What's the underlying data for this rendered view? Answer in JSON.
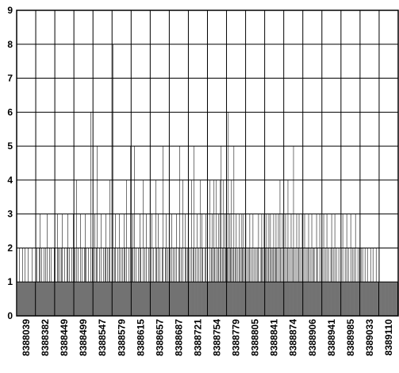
{
  "chart_data": {
    "type": "bar",
    "title": "",
    "xlabel": "",
    "ylabel": "",
    "ylim": [
      0,
      9
    ],
    "y_ticks": [
      "0",
      "1",
      "2",
      "3",
      "4",
      "5",
      "6",
      "7",
      "8",
      "9"
    ],
    "x_tick_labels": [
      "8388039",
      "8388382",
      "8388449",
      "8388499",
      "8388547",
      "8388579",
      "8388615",
      "8388657",
      "8388687",
      "8388721",
      "8388754",
      "8388779",
      "8388805",
      "8388841",
      "8388874",
      "8388906",
      "8388941",
      "8388985",
      "8389033",
      "8389110"
    ],
    "grid": true,
    "bar_color": "#000000",
    "categories_per_label": 24,
    "values": [
      1,
      1,
      1,
      2,
      1,
      1,
      1,
      2,
      1,
      1,
      2,
      1,
      1,
      1,
      2,
      1,
      1,
      1,
      1,
      2,
      1,
      1,
      1,
      1,
      1,
      2,
      1,
      1,
      2,
      3,
      1,
      2,
      1,
      1,
      2,
      1,
      2,
      1,
      3,
      1,
      1,
      2,
      1,
      2,
      1,
      1,
      1,
      2,
      2,
      1,
      1,
      3,
      2,
      1,
      2,
      1,
      2,
      3,
      1,
      1,
      2,
      1,
      1,
      2,
      3,
      1,
      2,
      1,
      1,
      2,
      1,
      3,
      1,
      2,
      1,
      4,
      1,
      2,
      1,
      1,
      3,
      1,
      2,
      1,
      1,
      2,
      3,
      2,
      1,
      1,
      2,
      1,
      1,
      6,
      1,
      2,
      2,
      1,
      3,
      1,
      2,
      5,
      1,
      1,
      2,
      1,
      3,
      1,
      1,
      2,
      1,
      2,
      3,
      1,
      2,
      1,
      2,
      4,
      1,
      1,
      1,
      8,
      1,
      2,
      3,
      1,
      1,
      2,
      1,
      3,
      1,
      2,
      1,
      2,
      1,
      3,
      2,
      1,
      4,
      1,
      1,
      2,
      1,
      5,
      1,
      2,
      3,
      1,
      5,
      1,
      2,
      1,
      1,
      2,
      1,
      3,
      2,
      1,
      1,
      4,
      1,
      2,
      1,
      3,
      1,
      1,
      2,
      1,
      2,
      1,
      3,
      1,
      2,
      1,
      1,
      4,
      2,
      1,
      3,
      1,
      2,
      1,
      1,
      2,
      5,
      1,
      1,
      2,
      3,
      1,
      2,
      1,
      1,
      2,
      1,
      3,
      1,
      2,
      1,
      2,
      1,
      3,
      1,
      1,
      2,
      5,
      1,
      2,
      1,
      4,
      1,
      1,
      3,
      2,
      1,
      2,
      4,
      1,
      2,
      1,
      4,
      1,
      2,
      5,
      1,
      2,
      1,
      3,
      1,
      2,
      1,
      4,
      1,
      3,
      2,
      1,
      1,
      2,
      3,
      1,
      2,
      1,
      1,
      4,
      1,
      2,
      3,
      1,
      4,
      2,
      1,
      4,
      1,
      2,
      3,
      1,
      4,
      5,
      1,
      2,
      4,
      1,
      3,
      2,
      1,
      2,
      6,
      1,
      3,
      2,
      4,
      1,
      2,
      5,
      1,
      2,
      3,
      1,
      2,
      1,
      3,
      2,
      1,
      3,
      2,
      3,
      1,
      2,
      3,
      1,
      2,
      1,
      2,
      3,
      1,
      2,
      1,
      3,
      1,
      2,
      1,
      2,
      1,
      2,
      3,
      1,
      1,
      2,
      3,
      2,
      1,
      3,
      1,
      2,
      3,
      1,
      2,
      3,
      1,
      3,
      2,
      1,
      2,
      3,
      1,
      2,
      3,
      2,
      1,
      3,
      1,
      4,
      2,
      1,
      3,
      1,
      2,
      1,
      3,
      1,
      2,
      4,
      1,
      2,
      1,
      3,
      1,
      2,
      5,
      1,
      2,
      1,
      3,
      1,
      2,
      3,
      1,
      2,
      1,
      3,
      2,
      1,
      3,
      1,
      2,
      1,
      2,
      3,
      1,
      2,
      1,
      3,
      1,
      2,
      2,
      1,
      1,
      3,
      2,
      1,
      1,
      3,
      1,
      2,
      2,
      1,
      3,
      1,
      2,
      1,
      3,
      1,
      2,
      1,
      1,
      2,
      3,
      1,
      2,
      1,
      3,
      1,
      2,
      1,
      1,
      2,
      1,
      1,
      2,
      1,
      3,
      1,
      1,
      2,
      1,
      3,
      1,
      2,
      1,
      1,
      3,
      1,
      2,
      1,
      2,
      1,
      3,
      1,
      1,
      2,
      1,
      2,
      1,
      2,
      1,
      2,
      1,
      1,
      2,
      1,
      1,
      2,
      1,
      1,
      1,
      2,
      1,
      1,
      2,
      1,
      1,
      1,
      2,
      1,
      1,
      1,
      1,
      1,
      1,
      1,
      1,
      1,
      1,
      1,
      1,
      1,
      1,
      1,
      1,
      1,
      1,
      1,
      1,
      1,
      1,
      1,
      1,
      1,
      1,
      1
    ]
  }
}
